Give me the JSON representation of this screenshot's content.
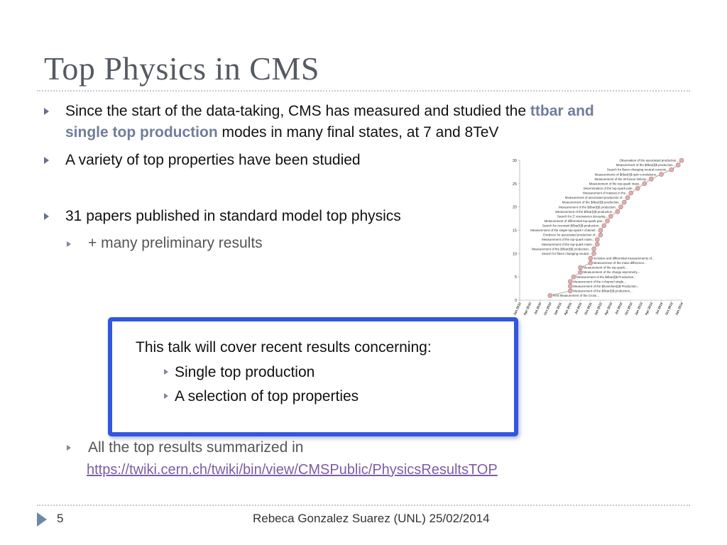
{
  "slide": {
    "title": "Top Physics in CMS",
    "bullets": {
      "b1_pre": "Since the start of the data-taking, CMS has measured and studied the ",
      "b1_hl1": "ttbar and",
      "b1_hl2": "single top production",
      "b1_post": " modes in many final states, at 7 and 8TeV",
      "b2": "A variety of top properties have been studied",
      "b3": "31 papers published in standard model top physics",
      "b3_sub": "+ many preliminary results",
      "summary_pre": "All the top results summarized in",
      "summary_link": "https://twiki.cern.ch/twiki/bin/view/CMSPublic/PhysicsResultsTOP"
    },
    "box": {
      "heading": "This talk will cover recent results concerning:",
      "items": [
        "Single top production",
        "A selection of top properties"
      ]
    },
    "footer": {
      "page": "5",
      "credit": "Rebeca Gonzalez Suarez (UNL) 25/02/2014"
    }
  },
  "chart_data": {
    "type": "scatter",
    "ylim": [
      0,
      30
    ],
    "yticks": [
      0,
      5,
      10,
      15,
      20,
      25,
      30
    ],
    "x_categories": [
      "Jan 2010",
      "Apr 2010",
      "Jul 2010",
      "Oct 2010",
      "Jan 2011",
      "Apr 2011",
      "Jul 2011",
      "Oct 2011",
      "Jan 2012",
      "Apr 2012",
      "Jul 2012",
      "Oct 2012",
      "Jan 2013",
      "Apr 2013",
      "Jul 2013",
      "Oct 2013",
      "Jan 2014"
    ],
    "points": [
      {
        "x": "Oct 2010",
        "y": 1,
        "label": "First Measurement of the Cross..."
      },
      {
        "x": "Apr 2011",
        "y": 2,
        "label": "Measurement of the $t\\bar{t}$ production..."
      },
      {
        "x": "Apr 2011",
        "y": 3,
        "label": "Measurement of the $t\\overline{t}$ Production..."
      },
      {
        "x": "Apr 2011",
        "y": 4,
        "label": "Measurement of the t-channel single..."
      },
      {
        "x": "May 2011",
        "y": 5,
        "label": "Measurement of the $t\\bar{t}$ Production..."
      },
      {
        "x": "Jul 2011",
        "y": 6,
        "label": "Measurement of the charge asymmetry..."
      },
      {
        "x": "Jul 2011",
        "y": 7,
        "label": "Measurement of the top quark..."
      },
      {
        "x": "Oct 2011",
        "y": 8,
        "label": "Measurement of the mass difference..."
      },
      {
        "x": "Oct 2011",
        "y": 9,
        "label": "Inclusive and differential measurements of..."
      },
      {
        "x": "Nov 2011",
        "y": 10,
        "label": "Search for flavor changing neutral..."
      },
      {
        "x": "Nov 2011",
        "y": 11,
        "label": "Measurement of the $t\\bar{t}$ production..."
      },
      {
        "x": "Dec 2011",
        "y": 12,
        "label": "Measurement of the top-quark mass..."
      },
      {
        "x": "Dec 2011",
        "y": 13,
        "label": "Measurement of the top-quark mass..."
      },
      {
        "x": "Jan 2012",
        "y": 14,
        "label": "Evidence for associated production of..."
      },
      {
        "x": "Jan 2012",
        "y": 15,
        "label": "Measurement of the single-top-quark t-channel..."
      },
      {
        "x": "Feb 2012",
        "y": 16,
        "label": "Search for resonant $t\\bar{t}$ production..."
      },
      {
        "x": "Mar 2012",
        "y": 17,
        "label": "Measurement of differential top-quark pair..."
      },
      {
        "x": "Apr 2012",
        "y": 18,
        "label": "Search for Z' resonances decaying..."
      },
      {
        "x": "Jun 2012",
        "y": 19,
        "label": "Measurement of the $t\\bar{t}$ production..."
      },
      {
        "x": "Jul 2012",
        "y": 20,
        "label": "Measurement of the $t\\bar{t}$ production..."
      },
      {
        "x": "Aug 2012",
        "y": 21,
        "label": "Measurement of the $t\\bar{t}$ production..."
      },
      {
        "x": "Sep 2012",
        "y": 22,
        "label": "Measurement of associated production of..."
      },
      {
        "x": "Oct 2012",
        "y": 23,
        "label": "Measurement of masses in the..."
      },
      {
        "x": "Dec 2012",
        "y": 24,
        "label": "Determination of the top-quark pole..."
      },
      {
        "x": "Feb 2013",
        "y": 25,
        "label": "Measurement of the top-quark mass..."
      },
      {
        "x": "Apr 2013",
        "y": 26,
        "label": "Measurement of the W-boson helicity..."
      },
      {
        "x": "Jul 2013",
        "y": 27,
        "label": "Measurements of $t\\bar{t}$ spin correlations..."
      },
      {
        "x": "Oct 2013",
        "y": 28,
        "label": "Search for flavor-changing neutral currents..."
      },
      {
        "x": "Dec 2013",
        "y": 29,
        "label": "Measurement of the $t\\bar{t}$ production..."
      },
      {
        "x": "Jan 2014",
        "y": 30,
        "label": "Observation of the associated production..."
      }
    ],
    "colors": {
      "marker": "#dcb0b0",
      "marker_stroke": "#b07c7c",
      "line": "#c8a3a3"
    }
  }
}
